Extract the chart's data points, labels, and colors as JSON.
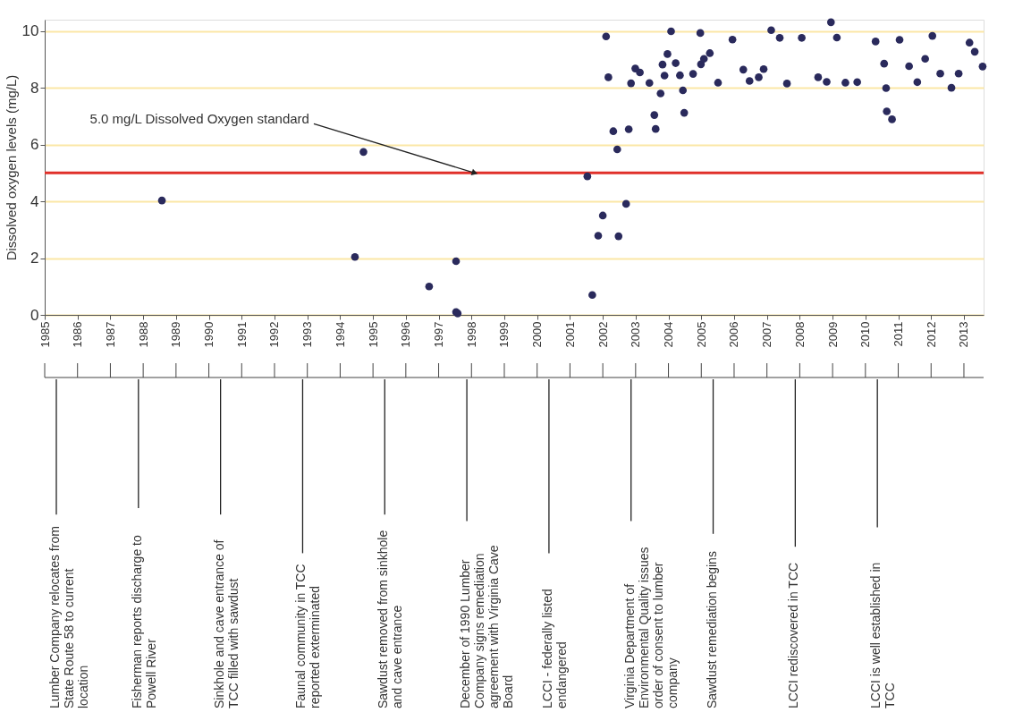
{
  "chart_data": {
    "type": "scatter",
    "ylabel": "Dissolved oxygen levels (mg/L)",
    "x": [
      1988.57,
      1994.71,
      1994.45,
      1996.71,
      1997.53,
      1997.53,
      1997.58,
      2001.53,
      2001.68,
      2001.86,
      2002.0,
      2002.48,
      2002.71,
      2002.44,
      2002.32,
      2002.79,
      2002.1,
      2002.17,
      2002.86,
      2002.99,
      2003.13,
      2003.42,
      2003.57,
      2003.61,
      2003.76,
      2003.82,
      2003.88,
      2003.97,
      2004.08,
      2004.22,
      2004.35,
      2004.44,
      2004.48,
      2004.75,
      2004.97,
      2004.99,
      2005.08,
      2005.26,
      2005.51,
      2005.95,
      2006.28,
      2006.47,
      2006.75,
      2006.9,
      2007.13,
      2007.39,
      2007.61,
      2008.06,
      2008.56,
      2008.82,
      2008.95,
      2009.13,
      2009.39,
      2009.75,
      2010.31,
      2010.57,
      2010.63,
      2010.65,
      2010.81,
      2011.04,
      2011.33,
      2011.58,
      2011.82,
      2012.04,
      2012.28,
      2012.62,
      2012.84,
      2013.17,
      2013.33,
      2013.57
    ],
    "series": [
      {
        "color": "#2a2a5c",
        "values": [
          4.03,
          5.74,
          2.04,
          1.0,
          1.89,
          0.1,
          0.05,
          4.88,
          0.7,
          2.79,
          3.5,
          2.77,
          3.91,
          5.83,
          6.47,
          6.54,
          9.81,
          8.37,
          8.16,
          8.68,
          8.54,
          8.17,
          7.04,
          6.55,
          7.8,
          8.82,
          8.43,
          9.19,
          9.99,
          8.87,
          8.44,
          7.91,
          7.12,
          8.49,
          9.93,
          8.83,
          9.02,
          9.22,
          8.18,
          9.7,
          8.64,
          8.24,
          8.37,
          8.66,
          10.03,
          9.76,
          8.15,
          9.76,
          8.37,
          8.21,
          10.31,
          9.77,
          8.18,
          8.2,
          9.63,
          8.85,
          7.99,
          7.17,
          6.89,
          9.69,
          8.76,
          8.2,
          9.02,
          9.83,
          8.5,
          8.0,
          8.5,
          9.59,
          9.27,
          8.75
        ]
      }
    ],
    "marker": "circle",
    "xlim": [
      1985,
      2013.6
    ],
    "xticks": [
      1985,
      1986,
      1987,
      1988,
      1989,
      1990,
      1991,
      1992,
      1993,
      1994,
      1995,
      1996,
      1997,
      1998,
      1999,
      2000,
      2001,
      2002,
      2003,
      2004,
      2005,
      2006,
      2007,
      2008,
      2009,
      2010,
      2011,
      2012,
      2013
    ],
    "ylim": [
      0,
      10.4
    ],
    "yticks": [
      0,
      2,
      4,
      6,
      8,
      10
    ],
    "grid": "y",
    "ref_lines": [
      {
        "axis": "y",
        "value": 5,
        "color": "#e0302a"
      }
    ],
    "annotations": [
      {
        "text": "5.0 mg/L Dissolved Oxygen standard",
        "x": 1998.1,
        "y": 5
      },
      "Lumber Company relocates from State Route 58 to current location",
      "Fisherman reports discharge to Powell River",
      "Sinkhole and cave entrance of TCC filled with sawdust",
      "Faunal community in TCC reported exterminated",
      "Sawdust removed from sinkhole and cave entrance",
      "December of 1990 Lumber Company signs remediation agreement with Virginia Cave Board",
      "LCCI - federally listed endangered",
      "Virginia Department of Environmental Quality issues order of consent to lumber company",
      "Sawdust remediation begins",
      "LCCI rediscovered in TCC",
      "LCCI is well established in TCC"
    ]
  }
}
